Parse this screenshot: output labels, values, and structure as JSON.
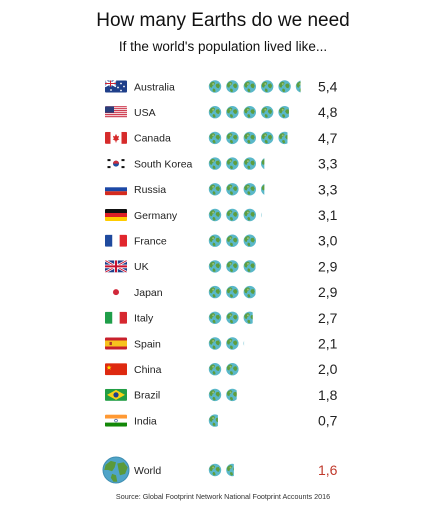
{
  "chart_data": {
    "type": "bar",
    "title": "How many Earths do we need",
    "subtitle": "If the world's population lived like...",
    "source": "Source: Global Footprint Network National Footprint Accounts 2016",
    "categories": [
      "Australia",
      "USA",
      "Canada",
      "South Korea",
      "Russia",
      "Germany",
      "France",
      "UK",
      "Japan",
      "Italy",
      "Spain",
      "China",
      "Brazil",
      "India"
    ],
    "values": [
      5.4,
      4.8,
      4.7,
      3.3,
      3.3,
      3.1,
      3.0,
      2.9,
      2.9,
      2.7,
      2.1,
      2.0,
      1.8,
      0.7
    ],
    "value_labels": [
      "5,4",
      "4,8",
      "4,7",
      "3,3",
      "3,3",
      "3,1",
      "3,0",
      "2,9",
      "2,9",
      "2,7",
      "2,1",
      "2,0",
      "1,8",
      "0,7"
    ],
    "flags": [
      "australia-flag",
      "usa-flag",
      "canada-flag",
      "south-korea-flag",
      "russia-flag",
      "germany-flag",
      "france-flag",
      "uk-flag",
      "japan-flag",
      "italy-flag",
      "spain-flag",
      "china-flag",
      "brazil-flag",
      "india-flag"
    ],
    "world": {
      "label": "World",
      "value": 1.6,
      "value_label": "1,6",
      "icon": "globe-icon"
    },
    "unit_icon": "earth-icon",
    "colors": {
      "ocean": "#5ab8c9",
      "land": "#5d9e3f",
      "highlight": "#c0392b"
    }
  }
}
